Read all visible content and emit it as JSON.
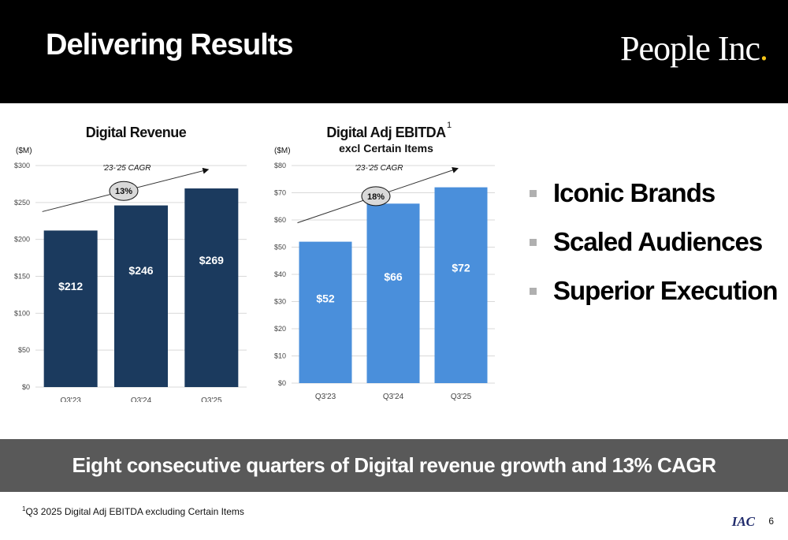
{
  "header": {
    "title": "Delivering Results",
    "logo_main": "People Inc",
    "logo_dot": "."
  },
  "bullets": [
    "Iconic Brands",
    "Scaled Audiences",
    "Superior Execution"
  ],
  "banner": "Eight consecutive quarters of Digital revenue growth and 13% CAGR",
  "footnote": {
    "marker": "1",
    "text": "Q3 2025 Digital Adj EBITDA excluding Certain Items"
  },
  "footer": {
    "iac": "IAC",
    "page": "6"
  },
  "colors": {
    "revenue_bar": "#1b3a5e",
    "ebitda_bar": "#4a8fdb"
  },
  "chart_data": [
    {
      "type": "bar",
      "title": "Digital Revenue",
      "unit_label": "($M)",
      "categories": [
        "Q3'23",
        "Q3'24",
        "Q3'25"
      ],
      "values": [
        212,
        246,
        269
      ],
      "value_labels": [
        "$212",
        "$246",
        "$269"
      ],
      "y_ticks": [
        "$0",
        "$50",
        "$100",
        "$150",
        "$200",
        "$250",
        "$300"
      ],
      "ylim": [
        0,
        300
      ],
      "cagr_label": "'23-'25 CAGR",
      "cagr_value": "13%"
    },
    {
      "type": "bar",
      "title": "Digital Adj EBITDA",
      "subtitle": "excl Certain Items",
      "superscript": "1",
      "unit_label": "($M)",
      "categories": [
        "Q3'23",
        "Q3'24",
        "Q3'25"
      ],
      "values": [
        52,
        66,
        72
      ],
      "value_labels": [
        "$52",
        "$66",
        "$72"
      ],
      "y_ticks": [
        "$0",
        "$10",
        "$20",
        "$30",
        "$40",
        "$50",
        "$60",
        "$70",
        "$80"
      ],
      "ylim": [
        0,
        80
      ],
      "cagr_label": "'23-'25 CAGR",
      "cagr_value": "18%"
    }
  ]
}
